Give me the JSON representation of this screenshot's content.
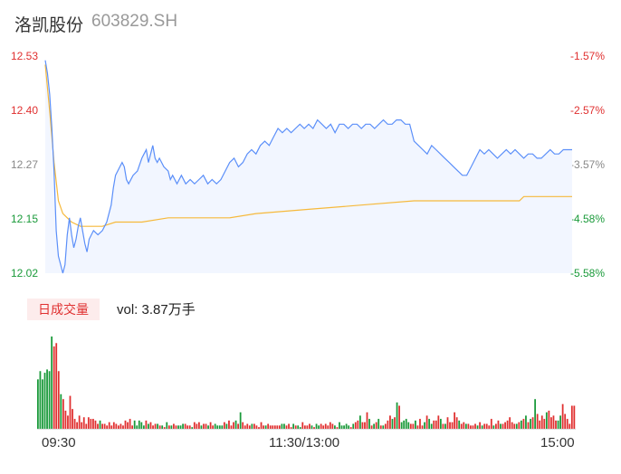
{
  "header": {
    "name": "洛凯股份",
    "code": "603829.SH"
  },
  "colors": {
    "price_line": "#5b8ff9",
    "avg_line": "#f6b93b",
    "area_fill": "#f2f6ff",
    "up": "#e03030",
    "down": "#1a9a3a",
    "neutral": "#888888"
  },
  "volume": {
    "badge": "日成交量",
    "summary": "vol: 3.87万手"
  },
  "chart_data": {
    "type": "line",
    "y_left_ticks": [
      "12.53",
      "12.40",
      "12.27",
      "12.15",
      "12.02"
    ],
    "y_right_ticks": [
      "-1.57%",
      "-2.57%",
      "-3.57%",
      "-4.58%",
      "-5.58%"
    ],
    "x_tick_labels": [
      "09:30",
      "11:30/13:00",
      "15:00"
    ],
    "ylim": [
      12.02,
      12.53
    ],
    "x_range": [
      0,
      240
    ],
    "series": [
      {
        "key": "price",
        "points": [
          [
            0,
            12.52
          ],
          [
            1,
            12.49
          ],
          [
            2,
            12.44
          ],
          [
            3,
            12.36
          ],
          [
            4,
            12.26
          ],
          [
            5,
            12.12
          ],
          [
            6,
            12.06
          ],
          [
            7,
            12.04
          ],
          [
            8,
            12.02
          ],
          [
            9,
            12.04
          ],
          [
            10,
            12.11
          ],
          [
            11,
            12.15
          ],
          [
            12,
            12.11
          ],
          [
            13,
            12.08
          ],
          [
            14,
            12.1
          ],
          [
            15,
            12.13
          ],
          [
            16,
            12.15
          ],
          [
            17,
            12.12
          ],
          [
            18,
            12.09
          ],
          [
            19,
            12.07
          ],
          [
            20,
            12.1
          ],
          [
            22,
            12.12
          ],
          [
            24,
            12.11
          ],
          [
            26,
            12.12
          ],
          [
            28,
            12.14
          ],
          [
            30,
            12.18
          ],
          [
            31,
            12.22
          ],
          [
            32,
            12.25
          ],
          [
            34,
            12.27
          ],
          [
            35,
            12.28
          ],
          [
            36,
            12.27
          ],
          [
            37,
            12.24
          ],
          [
            38,
            12.23
          ],
          [
            40,
            12.25
          ],
          [
            42,
            12.26
          ],
          [
            44,
            12.29
          ],
          [
            45,
            12.3
          ],
          [
            46,
            12.31
          ],
          [
            47,
            12.28
          ],
          [
            48,
            12.3
          ],
          [
            49,
            12.32
          ],
          [
            50,
            12.29
          ],
          [
            51,
            12.28
          ],
          [
            52,
            12.29
          ],
          [
            54,
            12.27
          ],
          [
            56,
            12.26
          ],
          [
            57,
            12.24
          ],
          [
            58,
            12.25
          ],
          [
            60,
            12.23
          ],
          [
            62,
            12.25
          ],
          [
            64,
            12.23
          ],
          [
            66,
            12.24
          ],
          [
            68,
            12.23
          ],
          [
            70,
            12.24
          ],
          [
            72,
            12.25
          ],
          [
            74,
            12.23
          ],
          [
            76,
            12.24
          ],
          [
            78,
            12.23
          ],
          [
            80,
            12.24
          ],
          [
            82,
            12.26
          ],
          [
            84,
            12.28
          ],
          [
            86,
            12.29
          ],
          [
            88,
            12.27
          ],
          [
            90,
            12.28
          ],
          [
            92,
            12.3
          ],
          [
            94,
            12.31
          ],
          [
            96,
            12.3
          ],
          [
            98,
            12.32
          ],
          [
            100,
            12.33
          ],
          [
            102,
            12.32
          ],
          [
            104,
            12.34
          ],
          [
            106,
            12.36
          ],
          [
            108,
            12.35
          ],
          [
            110,
            12.36
          ],
          [
            112,
            12.35
          ],
          [
            114,
            12.36
          ],
          [
            116,
            12.37
          ],
          [
            118,
            12.36
          ],
          [
            120,
            12.37
          ],
          [
            122,
            12.36
          ],
          [
            124,
            12.38
          ],
          [
            126,
            12.37
          ],
          [
            128,
            12.36
          ],
          [
            130,
            12.37
          ],
          [
            132,
            12.35
          ],
          [
            134,
            12.37
          ],
          [
            136,
            12.37
          ],
          [
            138,
            12.36
          ],
          [
            140,
            12.37
          ],
          [
            142,
            12.37
          ],
          [
            144,
            12.36
          ],
          [
            146,
            12.37
          ],
          [
            148,
            12.37
          ],
          [
            150,
            12.36
          ],
          [
            152,
            12.37
          ],
          [
            154,
            12.38
          ],
          [
            156,
            12.37
          ],
          [
            158,
            12.37
          ],
          [
            160,
            12.38
          ],
          [
            162,
            12.38
          ],
          [
            164,
            12.37
          ],
          [
            166,
            12.37
          ],
          [
            168,
            12.33
          ],
          [
            170,
            12.32
          ],
          [
            172,
            12.31
          ],
          [
            174,
            12.3
          ],
          [
            176,
            12.32
          ],
          [
            178,
            12.31
          ],
          [
            180,
            12.3
          ],
          [
            182,
            12.29
          ],
          [
            184,
            12.28
          ],
          [
            186,
            12.27
          ],
          [
            188,
            12.26
          ],
          [
            190,
            12.25
          ],
          [
            192,
            12.25
          ],
          [
            194,
            12.27
          ],
          [
            196,
            12.29
          ],
          [
            198,
            12.31
          ],
          [
            200,
            12.3
          ],
          [
            202,
            12.31
          ],
          [
            204,
            12.3
          ],
          [
            206,
            12.29
          ],
          [
            208,
            12.3
          ],
          [
            210,
            12.31
          ],
          [
            212,
            12.3
          ],
          [
            214,
            12.31
          ],
          [
            216,
            12.3
          ],
          [
            218,
            12.29
          ],
          [
            220,
            12.3
          ],
          [
            222,
            12.3
          ],
          [
            224,
            12.29
          ],
          [
            226,
            12.29
          ],
          [
            228,
            12.3
          ],
          [
            230,
            12.31
          ],
          [
            232,
            12.3
          ],
          [
            234,
            12.3
          ],
          [
            236,
            12.31
          ],
          [
            238,
            12.31
          ],
          [
            240,
            12.31
          ]
        ]
      },
      {
        "key": "average",
        "points": [
          [
            0,
            12.51
          ],
          [
            2,
            12.4
          ],
          [
            4,
            12.28
          ],
          [
            6,
            12.19
          ],
          [
            8,
            12.16
          ],
          [
            10,
            12.15
          ],
          [
            12,
            12.14
          ],
          [
            16,
            12.13
          ],
          [
            20,
            12.13
          ],
          [
            26,
            12.13
          ],
          [
            32,
            12.14
          ],
          [
            44,
            12.14
          ],
          [
            56,
            12.15
          ],
          [
            80,
            12.15
          ],
          [
            84,
            12.15
          ],
          [
            96,
            12.16
          ],
          [
            120,
            12.17
          ],
          [
            144,
            12.18
          ],
          [
            168,
            12.19
          ],
          [
            192,
            12.19
          ],
          [
            216,
            12.19
          ],
          [
            218,
            12.2
          ],
          [
            240,
            12.2
          ]
        ]
      }
    ],
    "volume_bars": [
      30,
      35,
      30,
      34,
      36,
      35,
      56,
      50,
      52,
      35,
      21,
      18,
      11,
      8,
      20,
      12,
      6,
      4,
      8,
      4,
      7,
      3,
      7,
      6,
      6,
      5,
      3,
      5,
      3,
      3,
      2,
      4,
      2,
      4,
      3,
      2,
      3,
      2,
      5,
      4,
      6,
      2,
      5,
      2,
      5,
      4,
      2,
      5,
      3,
      4,
      2,
      3,
      3,
      2,
      2,
      1,
      4,
      2,
      2,
      3,
      2,
      2,
      2,
      3,
      3,
      2,
      2,
      1,
      4,
      3,
      4,
      2,
      3,
      3,
      2,
      4,
      2,
      3,
      2,
      2,
      2,
      4,
      3,
      5,
      2,
      4,
      5,
      3,
      10,
      4,
      2,
      3,
      2,
      3,
      3,
      2,
      1,
      4,
      2,
      2,
      3,
      2,
      2,
      2,
      2,
      2,
      3,
      3,
      2,
      3,
      1,
      3,
      2,
      2,
      1,
      4,
      2,
      2,
      3,
      2,
      1,
      3,
      2,
      3,
      2,
      3,
      2,
      4,
      3,
      2,
      1,
      4,
      2,
      2,
      3,
      2,
      1,
      3,
      4,
      5,
      8,
      4,
      4,
      10,
      6,
      2,
      3,
      4,
      6,
      2,
      2,
      3,
      5,
      8,
      6,
      7,
      16,
      14,
      4,
      5,
      6,
      4,
      3,
      3,
      5,
      2,
      6,
      2,
      4,
      8,
      6,
      3,
      5,
      5,
      8,
      6,
      3,
      3,
      7,
      4,
      4,
      10,
      7,
      5,
      3,
      4,
      3,
      3,
      2,
      2,
      3,
      2,
      4,
      2,
      3,
      3,
      2,
      6,
      2,
      3,
      5,
      3,
      3,
      4,
      5,
      7,
      4,
      3,
      3,
      4,
      5,
      6,
      8,
      4,
      6,
      7,
      18,
      9,
      5,
      8,
      6,
      10,
      11,
      7,
      8,
      5,
      5,
      8,
      15,
      9,
      6,
      3,
      14,
      14
    ],
    "volume_colors": "gggggggrrrgrrrrrrrrrrrrrrrrgrrrrrrrrrrrrrrgggggrgrrrgrgrgrgrrgggrrrgrrrgrrgrrggggrgrrrgrgrrrrgrrrrrgrrrrrrggrrrgrggrrrrgrggrrrrrrgrgggggrgrrgrrrgrgrgrgrrrgrgrggggrrgrrrgrggrrrgrgrrrrrgrrgrrrrgrgrrrrgrrgrrrrrrgrgrgrgrgrrrrgrrrrggrrrrrrrrrrrrrr"
  }
}
